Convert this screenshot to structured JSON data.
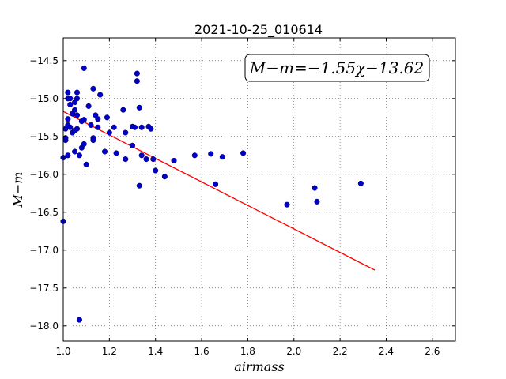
{
  "chart_data": {
    "type": "scatter",
    "title": "2021-10-25_010614",
    "xlabel": "airmass",
    "ylabel": "M−m",
    "xlim": [
      1.0,
      2.7
    ],
    "ylim": [
      -14.2,
      -18.2
    ],
    "y_inverted": true,
    "grid": true,
    "xticks": [
      "1.0",
      "1.2",
      "1.4",
      "1.6",
      "1.8",
      "2.0",
      "2.2",
      "2.4",
      "2.6"
    ],
    "yticks": [
      "−14.5",
      "−15.0",
      "−15.5",
      "−16.0",
      "−16.5",
      "−17.0",
      "−17.5",
      "−18.0"
    ],
    "annotation": "M−m=−1.55χ−13.62",
    "fit": {
      "slope": -1.55,
      "intercept": -13.62,
      "x_range": [
        1.0,
        2.35
      ],
      "color": "#ff0000"
    },
    "marker_color": "#0000c8",
    "points": [
      [
        1.0,
        -16.62
      ],
      [
        1.0,
        -15.78
      ],
      [
        1.01,
        -15.55
      ],
      [
        1.01,
        -15.52
      ],
      [
        1.01,
        -15.4
      ],
      [
        1.02,
        -15.35
      ],
      [
        1.02,
        -15.27
      ],
      [
        1.02,
        -15.0
      ],
      [
        1.02,
        -14.92
      ],
      [
        1.02,
        -15.75
      ],
      [
        1.03,
        -15.38
      ],
      [
        1.03,
        -15.0
      ],
      [
        1.03,
        -15.08
      ],
      [
        1.04,
        -15.45
      ],
      [
        1.04,
        -15.2
      ],
      [
        1.05,
        -15.05
      ],
      [
        1.05,
        -15.15
      ],
      [
        1.05,
        -15.42
      ],
      [
        1.05,
        -15.7
      ],
      [
        1.06,
        -15.0
      ],
      [
        1.06,
        -14.92
      ],
      [
        1.06,
        -15.22
      ],
      [
        1.06,
        -15.4
      ],
      [
        1.07,
        -15.75
      ],
      [
        1.07,
        -17.92
      ],
      [
        1.08,
        -15.65
      ],
      [
        1.08,
        -15.3
      ],
      [
        1.09,
        -15.28
      ],
      [
        1.09,
        -14.6
      ],
      [
        1.09,
        -15.6
      ],
      [
        1.1,
        -15.87
      ],
      [
        1.11,
        -15.1
      ],
      [
        1.12,
        -15.35
      ],
      [
        1.13,
        -15.52
      ],
      [
        1.13,
        -15.55
      ],
      [
        1.13,
        -14.87
      ],
      [
        1.14,
        -15.22
      ],
      [
        1.15,
        -15.38
      ],
      [
        1.15,
        -15.27
      ],
      [
        1.16,
        -14.95
      ],
      [
        1.18,
        -15.7
      ],
      [
        1.19,
        -15.25
      ],
      [
        1.2,
        -15.45
      ],
      [
        1.22,
        -15.38
      ],
      [
        1.23,
        -15.72
      ],
      [
        1.26,
        -15.15
      ],
      [
        1.27,
        -15.45
      ],
      [
        1.27,
        -15.8
      ],
      [
        1.3,
        -15.62
      ],
      [
        1.3,
        -15.37
      ],
      [
        1.31,
        -15.38
      ],
      [
        1.32,
        -14.67
      ],
      [
        1.32,
        -14.77
      ],
      [
        1.33,
        -16.15
      ],
      [
        1.33,
        -15.12
      ],
      [
        1.34,
        -15.38
      ],
      [
        1.34,
        -15.75
      ],
      [
        1.36,
        -15.8
      ],
      [
        1.37,
        -15.37
      ],
      [
        1.38,
        -15.4
      ],
      [
        1.39,
        -15.8
      ],
      [
        1.4,
        -15.95
      ],
      [
        1.44,
        -16.03
      ],
      [
        1.48,
        -15.82
      ],
      [
        1.57,
        -15.75
      ],
      [
        1.64,
        -15.73
      ],
      [
        1.66,
        -16.13
      ],
      [
        1.69,
        -15.77
      ],
      [
        1.78,
        -15.72
      ],
      [
        1.97,
        -16.4
      ],
      [
        2.09,
        -16.18
      ],
      [
        2.1,
        -16.36
      ],
      [
        2.29,
        -16.12
      ]
    ]
  }
}
